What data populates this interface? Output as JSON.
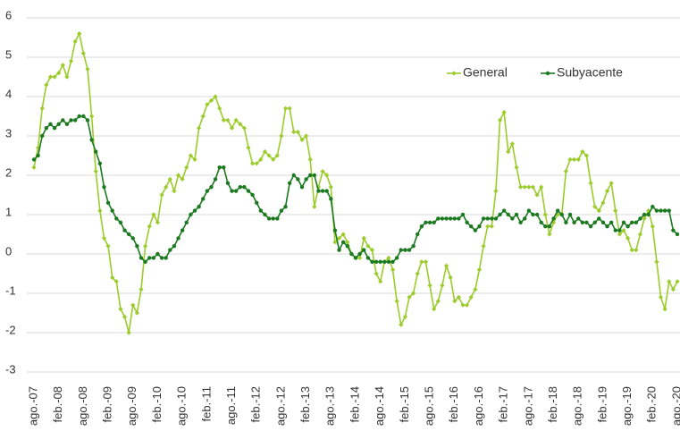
{
  "chart_data": {
    "type": "line",
    "categories": [
      "ago.-07",
      null,
      null,
      null,
      null,
      null,
      "feb.-08",
      null,
      null,
      null,
      null,
      null,
      "ago.-08",
      null,
      null,
      null,
      null,
      null,
      "feb.-09",
      null,
      null,
      null,
      null,
      null,
      "ago.-09",
      null,
      null,
      null,
      null,
      null,
      "feb.-10",
      null,
      null,
      null,
      null,
      null,
      "ago.-10",
      null,
      null,
      null,
      null,
      null,
      "feb.-11",
      null,
      null,
      null,
      null,
      null,
      "ago.-11",
      null,
      null,
      null,
      null,
      null,
      "feb.-12",
      null,
      null,
      null,
      null,
      null,
      "ago.-12",
      null,
      null,
      null,
      null,
      null,
      "feb.-13",
      null,
      null,
      null,
      null,
      null,
      "ago.-13",
      null,
      null,
      null,
      null,
      null,
      "feb.-14",
      null,
      null,
      null,
      null,
      null,
      "ago.-14",
      null,
      null,
      null,
      null,
      null,
      "feb.-15",
      null,
      null,
      null,
      null,
      null,
      "ago.-15",
      null,
      null,
      null,
      null,
      null,
      "feb.-16",
      null,
      null,
      null,
      null,
      null,
      "ago.-16",
      null,
      null,
      null,
      null,
      null,
      "feb.-17",
      null,
      null,
      null,
      null,
      null,
      "ago.-17",
      null,
      null,
      null,
      null,
      null,
      "feb.-18",
      null,
      null,
      null,
      null,
      null,
      "ago.-18",
      null,
      null,
      null,
      null,
      null,
      "feb.-19",
      null,
      null,
      null,
      null,
      null,
      "ago.-19",
      null,
      null,
      null,
      null,
      null,
      "feb.-20",
      null,
      null,
      null,
      null,
      null,
      "ago.-20"
    ],
    "series": [
      {
        "name": "General",
        "color": "#9ccc2c",
        "values": [
          2.2,
          2.7,
          3.7,
          4.3,
          4.5,
          4.5,
          4.6,
          4.8,
          4.5,
          4.9,
          5.4,
          5.6,
          5.1,
          4.7,
          3.5,
          2.1,
          1.1,
          0.4,
          0.2,
          -0.6,
          -0.7,
          -1.4,
          -1.6,
          -2.0,
          -1.3,
          -1.5,
          -0.9,
          0.2,
          0.7,
          1.0,
          0.8,
          1.5,
          1.7,
          1.9,
          1.6,
          2.0,
          1.9,
          2.2,
          2.5,
          2.4,
          3.2,
          3.5,
          3.8,
          3.9,
          4.0,
          3.7,
          3.4,
          3.4,
          3.2,
          3.4,
          3.3,
          3.2,
          2.7,
          2.3,
          2.3,
          2.4,
          2.6,
          2.5,
          2.4,
          2.5,
          3.0,
          3.7,
          3.7,
          3.1,
          3.1,
          2.9,
          3.0,
          2.4,
          1.2,
          1.7,
          2.1,
          2.0,
          1.7,
          0.3,
          0.4,
          0.5,
          0.3,
          0.0,
          -0.1,
          -0.1,
          0.4,
          0.2,
          0.1,
          -0.5,
          -0.7,
          -0.2,
          -0.1,
          -0.4,
          -1.2,
          -1.8,
          -1.6,
          -1.1,
          -1.0,
          -0.5,
          -0.2,
          -0.2,
          -0.8,
          -1.4,
          -1.2,
          -0.8,
          -0.3,
          -0.6,
          -1.2,
          -1.1,
          -1.3,
          -1.3,
          -1.1,
          -0.9,
          -0.4,
          0.2,
          0.7,
          0.7,
          1.6,
          3.4,
          3.6,
          2.6,
          2.8,
          2.2,
          1.7,
          1.7,
          1.7,
          1.7,
          1.5,
          1.7,
          1.0,
          0.5,
          0.8,
          1.0,
          1.0,
          2.1,
          2.4,
          2.4,
          2.4,
          2.6,
          2.5,
          1.8,
          1.2,
          1.1,
          1.3,
          1.6,
          1.8,
          1.1,
          0.5,
          0.6,
          0.4,
          0.1,
          0.1,
          0.5,
          0.9,
          1.1,
          0.7,
          -0.2,
          -1.1,
          -1.4,
          -0.7,
          -0.9,
          -0.7
        ]
      },
      {
        "name": "Subyacente",
        "color": "#1b7a1f",
        "values": [
          2.4,
          2.5,
          3.0,
          3.2,
          3.3,
          3.2,
          3.3,
          3.4,
          3.3,
          3.4,
          3.4,
          3.5,
          3.5,
          3.4,
          2.9,
          2.6,
          2.3,
          1.7,
          1.3,
          1.1,
          0.9,
          0.8,
          0.6,
          0.5,
          0.4,
          0.2,
          -0.1,
          -0.2,
          -0.1,
          -0.1,
          0.0,
          -0.1,
          -0.1,
          0.1,
          0.2,
          0.4,
          0.6,
          0.8,
          1.0,
          1.1,
          1.2,
          1.4,
          1.6,
          1.7,
          1.9,
          2.2,
          2.2,
          1.8,
          1.6,
          1.6,
          1.7,
          1.7,
          1.6,
          1.5,
          1.3,
          1.1,
          1.0,
          0.9,
          0.9,
          0.9,
          1.1,
          1.2,
          1.8,
          2.0,
          1.9,
          1.7,
          1.9,
          2.0,
          2.0,
          1.6,
          1.6,
          1.6,
          1.4,
          0.6,
          0.1,
          0.3,
          0.2,
          0.0,
          -0.1,
          0.0,
          0.1,
          -0.1,
          -0.2,
          -0.2,
          -0.2,
          -0.2,
          -0.2,
          -0.2,
          -0.1,
          0.1,
          0.1,
          0.1,
          0.2,
          0.5,
          0.7,
          0.8,
          0.8,
          0.8,
          0.9,
          0.9,
          0.9,
          0.9,
          0.9,
          0.9,
          1.0,
          0.8,
          0.7,
          0.6,
          0.7,
          0.9,
          0.9,
          0.9,
          0.9,
          1.0,
          1.1,
          1.0,
          0.9,
          1.0,
          0.8,
          0.9,
          1.1,
          1.0,
          1.0,
          0.8,
          0.7,
          0.7,
          0.9,
          1.1,
          1.0,
          0.8,
          1.0,
          0.8,
          0.9,
          0.8,
          0.8,
          0.7,
          0.8,
          0.9,
          0.8,
          0.7,
          0.8,
          0.6,
          0.6,
          0.8,
          0.7,
          0.8,
          0.8,
          0.9,
          1.0,
          1.0,
          1.2,
          1.1,
          1.1,
          1.1,
          1.1,
          0.6,
          0.5
        ]
      }
    ],
    "ylim": [
      -3,
      6
    ],
    "yticks": [
      -3,
      -2,
      -1,
      0,
      1,
      2,
      3,
      4,
      5,
      6
    ],
    "grid": true,
    "legend": "upper right"
  }
}
